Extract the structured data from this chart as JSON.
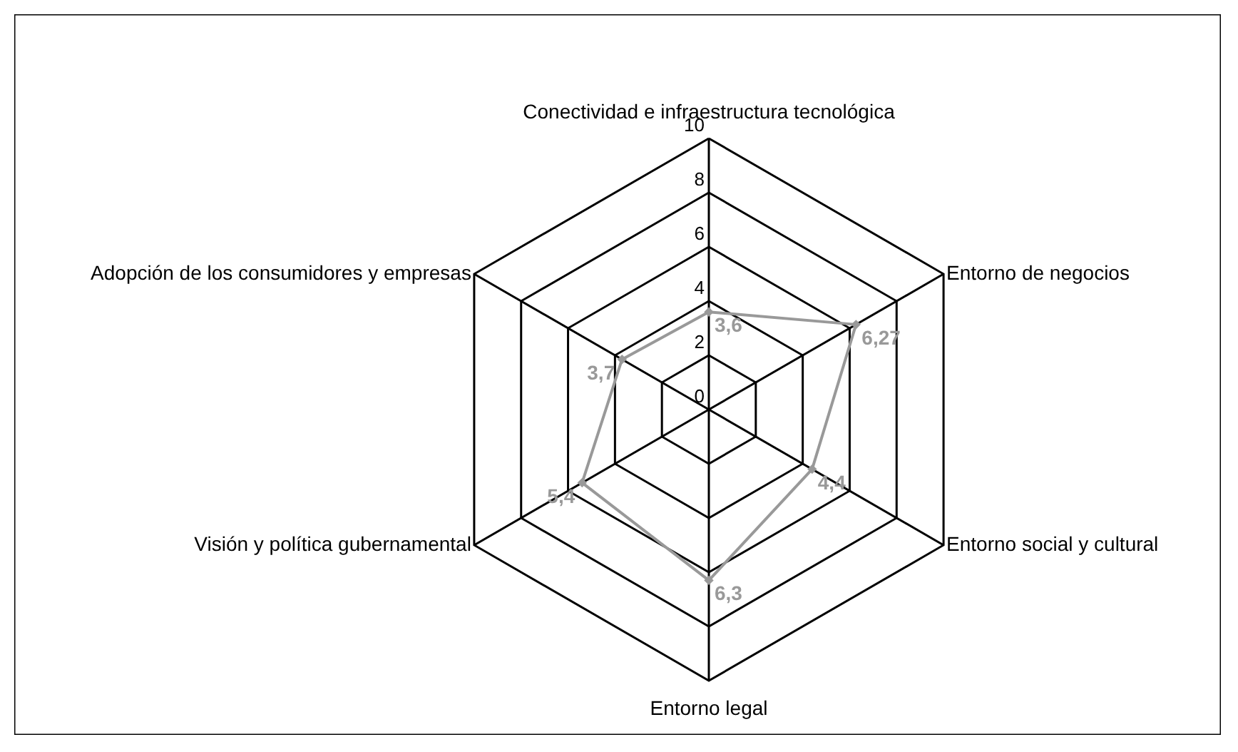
{
  "chart_data": {
    "type": "radar",
    "categories": [
      "Conectividad e infraestructura tecnológica",
      "Entorno de negocios",
      "Entorno social y cultural",
      "Entorno legal",
      "Visión y política gubernamental",
      "Adopción de los consumidores y empresas"
    ],
    "series": [
      {
        "color": "#999999",
        "values": [
          3.6,
          6.27,
          4.4,
          6.3,
          5.4,
          3.7
        ],
        "value_labels": [
          "3,6",
          "6,27",
          "4,4",
          "6,3",
          "5,4",
          "3,7"
        ]
      }
    ],
    "ylim": [
      0,
      10
    ],
    "yticks": [
      0,
      2,
      4,
      6,
      8,
      10
    ],
    "grid": true,
    "marker": "diamond"
  }
}
